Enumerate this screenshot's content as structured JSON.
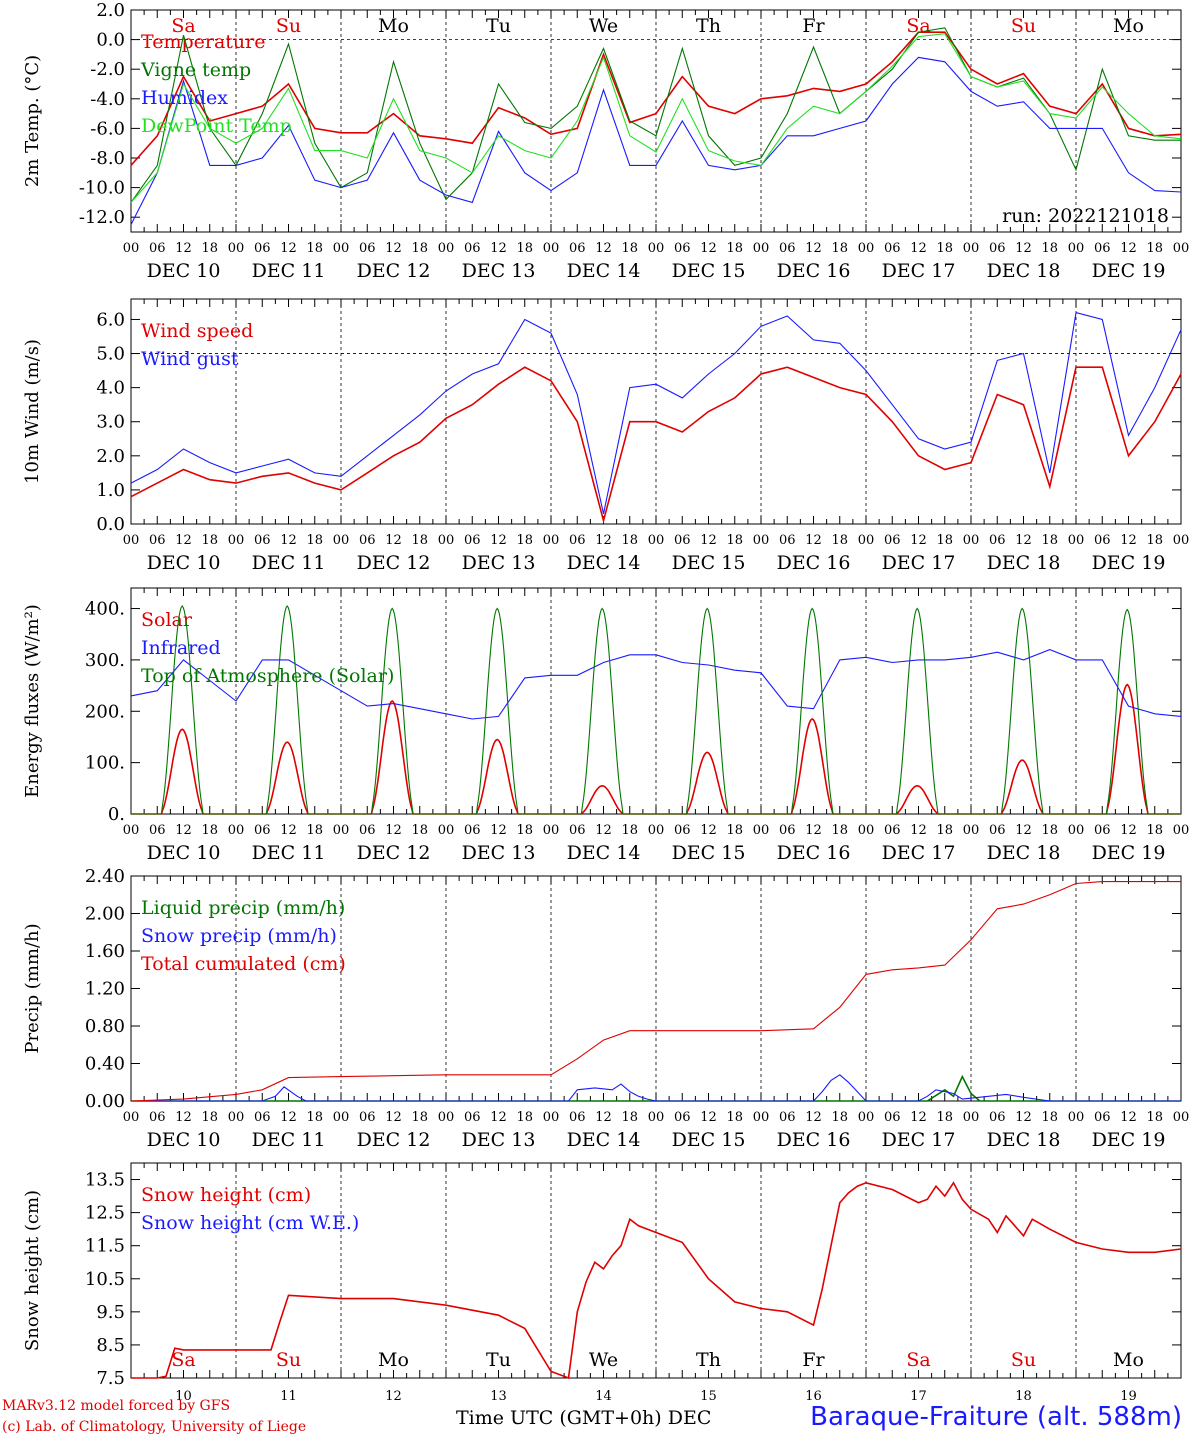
{
  "chart_data": [
    {
      "type": "line",
      "ylabel": "2m Temp. (°C)",
      "ylim": [
        -13,
        2
      ],
      "yticks": [
        2,
        0,
        -2,
        -4,
        -6,
        -8,
        -10,
        -12
      ],
      "ytick_labels": [
        "2.0",
        "0.0",
        "-2.0",
        "-4.0",
        "-6.0",
        "-8.0",
        "-10.0",
        "-12.0"
      ],
      "hlines": [
        0
      ],
      "day_labels_top": [
        "Sa",
        "Su",
        "Mo",
        "Tu",
        "We",
        "Th",
        "Fr",
        "Sa",
        "Su",
        "Mo"
      ],
      "annotation": "run: 2022121018",
      "series": [
        {
          "name": "Temperature",
          "color": "#e00000",
          "x": [
            0,
            6,
            12,
            18,
            24,
            30,
            36,
            42,
            48,
            54,
            60,
            66,
            72,
            78,
            84,
            90,
            96,
            102,
            108,
            114,
            120,
            126,
            132,
            138,
            144,
            150,
            156,
            162,
            168,
            174,
            180,
            186,
            192,
            198,
            204,
            210,
            216,
            222,
            228,
            234,
            240
          ],
          "y": [
            -8.5,
            -6.5,
            -2.5,
            -5.5,
            -5,
            -4.5,
            -3,
            -6,
            -6.3,
            -6.3,
            -5,
            -6.5,
            -6.7,
            -7,
            -4.6,
            -5.3,
            -6.4,
            -6,
            -1,
            -5.6,
            -5,
            -2.5,
            -4.5,
            -5,
            -4,
            -3.8,
            -3.3,
            -3.5,
            -3,
            -1.5,
            0.5,
            0.5,
            -2,
            -3,
            -2.3,
            -4.5,
            -5,
            -3,
            -6,
            -6.5,
            -6.4
          ]
        },
        {
          "name": "Vigne temp",
          "color": "#007700",
          "x": [
            0,
            6,
            12,
            18,
            24,
            30,
            36,
            42,
            48,
            54,
            60,
            66,
            72,
            78,
            84,
            90,
            96,
            102,
            108,
            114,
            120,
            126,
            132,
            138,
            144,
            150,
            156,
            162,
            168,
            174,
            180,
            186,
            192,
            198,
            204,
            210,
            216,
            222,
            228,
            234,
            240
          ],
          "y": [
            -11,
            -8.5,
            0.3,
            -6,
            -8.5,
            -5,
            -0.3,
            -7,
            -10,
            -9,
            -1.5,
            -7,
            -10.8,
            -9,
            -3,
            -5.6,
            -6,
            -4.5,
            -0.6,
            -5.5,
            -6.5,
            -0.6,
            -6.5,
            -8.5,
            -8,
            -5,
            -0.5,
            -5,
            -3.5,
            -2,
            0.5,
            0.8,
            -2.5,
            -3.2,
            -2.6,
            -5,
            -8.8,
            -2,
            -6.5,
            -6.8,
            -6.8
          ]
        },
        {
          "name": "Humidex",
          "color": "#1a1aff",
          "x": [
            0,
            6,
            12,
            18,
            24,
            30,
            36,
            42,
            48,
            54,
            60,
            66,
            72,
            78,
            84,
            90,
            96,
            102,
            108,
            114,
            120,
            126,
            132,
            138,
            144,
            150,
            156,
            162,
            168,
            174,
            180,
            186,
            192,
            198,
            204,
            210,
            216,
            222,
            228,
            234,
            240
          ],
          "y": [
            -12.5,
            -9,
            -2.8,
            -8.5,
            -8.5,
            -8,
            -5.8,
            -9.5,
            -10,
            -9.5,
            -6.3,
            -9.5,
            -10.5,
            -11,
            -6.2,
            -9,
            -10.2,
            -9,
            -3.4,
            -8.5,
            -8.5,
            -5.5,
            -8.5,
            -8.8,
            -8.5,
            -6.5,
            -6.5,
            -6,
            -5.5,
            -3,
            -1.2,
            -1.5,
            -3.5,
            -4.5,
            -4.2,
            -6,
            -6,
            -6,
            -9,
            -10.2,
            -10.3
          ]
        },
        {
          "name": "DewPoint Temp",
          "color": "#22e022",
          "x": [
            0,
            6,
            12,
            18,
            24,
            30,
            36,
            42,
            48,
            54,
            60,
            66,
            72,
            78,
            84,
            90,
            96,
            102,
            108,
            114,
            120,
            126,
            132,
            138,
            144,
            150,
            156,
            162,
            168,
            174,
            180,
            186,
            192,
            198,
            204,
            210,
            216,
            222,
            228,
            234,
            240
          ],
          "y": [
            -11,
            -9,
            -3,
            -6,
            -7,
            -6,
            -3.3,
            -7.5,
            -7.5,
            -8,
            -4,
            -7.5,
            -8,
            -9,
            -6.5,
            -7.5,
            -8,
            -5.5,
            -1.2,
            -6.5,
            -7.6,
            -4,
            -7.5,
            -8.2,
            -8.5,
            -6,
            -4.5,
            -5,
            -3.5,
            -1.8,
            0.2,
            0.4,
            -2.5,
            -3.2,
            -2.8,
            -5,
            -5.3,
            -3.2,
            -5,
            -6.5,
            -6.7
          ]
        }
      ]
    },
    {
      "type": "line",
      "ylabel": "10m Wind (m/s)",
      "ylim": [
        0,
        6.6
      ],
      "yticks": [
        6,
        5,
        4,
        3,
        2,
        1,
        0
      ],
      "ytick_labels": [
        "6.0",
        "5.0",
        "4.0",
        "3.0",
        "2.0",
        "1.0",
        "0.0"
      ],
      "hlines": [
        5
      ],
      "series": [
        {
          "name": "Wind speed",
          "color": "#e00000",
          "x": [
            0,
            6,
            12,
            18,
            24,
            30,
            36,
            42,
            48,
            54,
            60,
            66,
            72,
            78,
            84,
            90,
            96,
            102,
            108,
            114,
            120,
            126,
            132,
            138,
            144,
            150,
            156,
            162,
            168,
            174,
            180,
            186,
            192,
            198,
            204,
            210,
            216,
            222,
            228,
            234,
            240
          ],
          "y": [
            0.8,
            1.2,
            1.6,
            1.3,
            1.2,
            1.4,
            1.5,
            1.2,
            1.0,
            1.5,
            2.0,
            2.4,
            3.1,
            3.5,
            4.1,
            4.6,
            4.2,
            3.0,
            0.1,
            3.0,
            3.0,
            2.7,
            3.3,
            3.7,
            4.4,
            4.6,
            4.3,
            4.0,
            3.8,
            3.0,
            2.0,
            1.6,
            1.8,
            3.8,
            3.5,
            1.1,
            4.6,
            4.6,
            2.0,
            3.0,
            4.4
          ]
        },
        {
          "name": "Wind gust",
          "color": "#1a1aff",
          "x": [
            0,
            6,
            12,
            18,
            24,
            30,
            36,
            42,
            48,
            54,
            60,
            66,
            72,
            78,
            84,
            90,
            96,
            102,
            108,
            114,
            120,
            126,
            132,
            138,
            144,
            150,
            156,
            162,
            168,
            174,
            180,
            186,
            192,
            198,
            204,
            210,
            216,
            222,
            228,
            234,
            240
          ],
          "y": [
            1.2,
            1.6,
            2.2,
            1.8,
            1.5,
            1.7,
            1.9,
            1.5,
            1.4,
            2.0,
            2.6,
            3.2,
            3.9,
            4.4,
            4.7,
            6.0,
            5.6,
            3.8,
            0.3,
            4.0,
            4.1,
            3.7,
            4.4,
            5.0,
            5.8,
            6.1,
            5.4,
            5.3,
            4.5,
            3.5,
            2.5,
            2.2,
            2.4,
            4.8,
            5.0,
            1.5,
            6.2,
            6.0,
            2.6,
            4.0,
            5.7
          ]
        }
      ]
    },
    {
      "type": "line",
      "ylabel": "Energy fluxes (W/m²)",
      "ylim": [
        0,
        440
      ],
      "yticks": [
        400,
        300,
        200,
        100,
        0
      ],
      "ytick_labels": [
        "400.",
        "300.",
        "200.",
        "100.",
        "0."
      ],
      "series": [
        {
          "name": "Solar",
          "color": "#e00000",
          "peaks": [
            165,
            140,
            220,
            145,
            55,
            120,
            185,
            55,
            105,
            252
          ]
        },
        {
          "name": "Infrared",
          "color": "#1a1aff",
          "x": [
            0,
            6,
            12,
            18,
            24,
            30,
            36,
            42,
            48,
            54,
            60,
            66,
            72,
            78,
            84,
            90,
            96,
            102,
            108,
            114,
            120,
            126,
            132,
            138,
            144,
            150,
            156,
            162,
            168,
            174,
            180,
            186,
            192,
            198,
            204,
            210,
            216,
            222,
            228,
            234,
            240
          ],
          "y": [
            230,
            240,
            300,
            260,
            220,
            300,
            300,
            270,
            240,
            210,
            215,
            205,
            195,
            185,
            190,
            265,
            270,
            270,
            295,
            310,
            310,
            295,
            290,
            280,
            275,
            210,
            205,
            300,
            305,
            295,
            300,
            300,
            305,
            315,
            300,
            320,
            300,
            300,
            210,
            195,
            190
          ]
        },
        {
          "name": "Top of Atmosphere (Solar)",
          "color": "#007700",
          "peaks": [
            405,
            405,
            400,
            400,
            400,
            400,
            400,
            400,
            400,
            398
          ]
        }
      ]
    },
    {
      "type": "line",
      "ylabel": "Precip (mm/h)",
      "ylim": [
        0,
        2.4
      ],
      "yticks": [
        2.4,
        2.0,
        1.6,
        1.2,
        0.8,
        0.4,
        0.0
      ],
      "ytick_labels": [
        "2.40",
        "2.00",
        "1.60",
        "1.20",
        "0.80",
        "0.40",
        "0.00"
      ],
      "series": [
        {
          "name": "Liquid precip (mm/h)",
          "color": "#007700",
          "x": [
            0,
            182,
            184,
            186,
            188,
            190,
            192,
            194,
            240
          ],
          "y": [
            0,
            0,
            0.06,
            0.12,
            0.05,
            0.26,
            0.08,
            0,
            0
          ]
        },
        {
          "name": "Snow precip (mm/h)",
          "color": "#1a1aff",
          "x": [
            0,
            30,
            33,
            35,
            38,
            40,
            100,
            102,
            106,
            110,
            112,
            114,
            116,
            118,
            120,
            156,
            158,
            160,
            162,
            164,
            166,
            168,
            180,
            182,
            184,
            188,
            190,
            196,
            200,
            204,
            210,
            240
          ],
          "y": [
            0,
            0,
            0.05,
            0.15,
            0.05,
            0,
            0,
            0.12,
            0.14,
            0.12,
            0.18,
            0.1,
            0.05,
            0.02,
            0,
            0,
            0.1,
            0.22,
            0.28,
            0.2,
            0.1,
            0,
            0,
            0.05,
            0.12,
            0.08,
            0.02,
            0.05,
            0.07,
            0.04,
            0,
            0
          ]
        },
        {
          "name": "Total cumulated (cm)",
          "color": "#e00000",
          "x": [
            0,
            12,
            24,
            30,
            36,
            48,
            60,
            72,
            84,
            96,
            102,
            108,
            114,
            120,
            132,
            144,
            156,
            162,
            168,
            174,
            180,
            186,
            192,
            198,
            204,
            210,
            216,
            222,
            228,
            234,
            240
          ],
          "y": [
            0,
            0.02,
            0.07,
            0.12,
            0.25,
            0.26,
            0.27,
            0.28,
            0.28,
            0.28,
            0.45,
            0.65,
            0.75,
            0.75,
            0.75,
            0.75,
            0.77,
            1.0,
            1.35,
            1.4,
            1.42,
            1.45,
            1.72,
            2.05,
            2.1,
            2.2,
            2.32,
            2.34,
            2.34,
            2.34,
            2.34
          ]
        }
      ]
    },
    {
      "type": "line",
      "ylabel": "Snow height (cm)",
      "ylim": [
        7.5,
        14
      ],
      "yticks": [
        13.5,
        12.5,
        11.5,
        10.5,
        9.5,
        8.5,
        7.5
      ],
      "ytick_labels": [
        "13.5",
        "12.5",
        "11.5",
        "10.5",
        "9.5",
        "8.5",
        "7.5"
      ],
      "x_ticks_labels": [
        "10",
        "11",
        "12",
        "13",
        "14",
        "15",
        "16",
        "17",
        "18",
        "19"
      ],
      "series": [
        {
          "name": "Snow height (cm)",
          "color": "#e00000",
          "x": [
            0,
            6,
            8,
            10,
            12,
            20,
            32,
            34,
            36,
            48,
            60,
            72,
            84,
            90,
            96,
            100,
            102,
            104,
            106,
            108,
            110,
            112,
            114,
            116,
            120,
            126,
            132,
            138,
            144,
            150,
            156,
            158,
            160,
            162,
            164,
            166,
            168,
            174,
            180,
            182,
            184,
            186,
            188,
            190,
            192,
            196,
            198,
            200,
            202,
            204,
            206,
            210,
            216,
            222,
            228,
            234,
            240
          ],
          "y": [
            7.5,
            7.5,
            7.55,
            8.4,
            8.35,
            8.35,
            8.35,
            9.2,
            10.0,
            9.9,
            9.9,
            9.7,
            9.4,
            9.0,
            7.7,
            7.5,
            9.5,
            10.4,
            11.0,
            10.8,
            11.2,
            11.5,
            12.3,
            12.1,
            11.9,
            11.6,
            10.5,
            9.8,
            9.6,
            9.5,
            9.1,
            10.2,
            11.5,
            12.8,
            13.1,
            13.3,
            13.4,
            13.2,
            12.8,
            12.9,
            13.3,
            13.0,
            13.4,
            12.9,
            12.6,
            12.3,
            11.9,
            12.4,
            12.1,
            11.8,
            12.3,
            12.0,
            11.6,
            11.4,
            11.3,
            11.3,
            11.4
          ]
        },
        {
          "name": "Snow height (cm W.E.)",
          "color": "#1a1aff",
          "x": [],
          "y": []
        }
      ],
      "day_labels_bottom": [
        "Sa",
        "Su",
        "Mo",
        "Tu",
        "We",
        "Th",
        "Fr",
        "Sa",
        "Su",
        "Mo"
      ],
      "day_labels_bottom_colors": [
        "#e00000",
        "#e00000",
        "#000000",
        "#000000",
        "#000000",
        "#000000",
        "#000000",
        "#e00000",
        "#e00000",
        "#000000"
      ]
    }
  ],
  "shared_x": {
    "hour_ticks": [
      "00",
      "06",
      "12",
      "18"
    ],
    "date_labels": [
      "DEC 10",
      "DEC 11",
      "DEC 12",
      "DEC 13",
      "DEC 14",
      "DEC 15",
      "DEC 16",
      "DEC 17",
      "DEC 18",
      "DEC 19"
    ],
    "day_labels_top_colors": [
      "#e00000",
      "#e00000",
      "#000000",
      "#000000",
      "#000000",
      "#000000",
      "#000000",
      "#e00000",
      "#e00000",
      "#000000"
    ]
  },
  "footer": {
    "credit_line1": "MARv3.12 model forced by GFS",
    "credit_line2": "(c) Lab. of Climatology, University of Liege",
    "axis_label": "Time UTC (GMT+0h) DEC",
    "station": "Baraque-Fraiture (alt. 588m)"
  }
}
